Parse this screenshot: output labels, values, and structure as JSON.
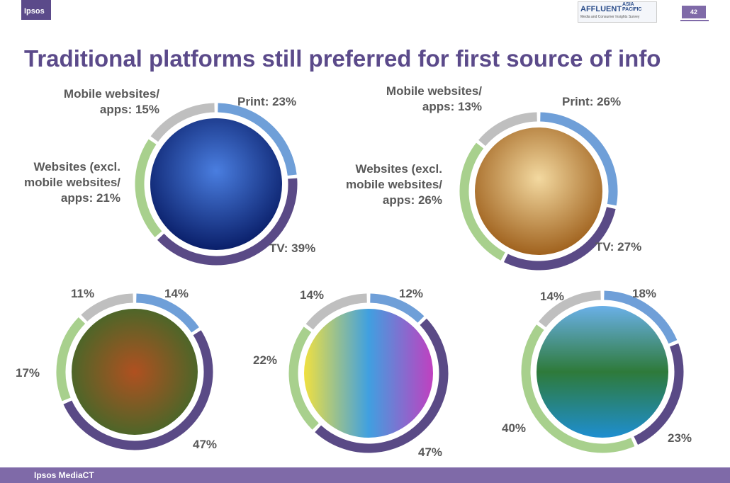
{
  "header": {
    "logo": "Ipsos",
    "brand": "AFFLUENT",
    "region": "ASIA PACIFIC",
    "subtitle": "Media and Consumer Insights Survey",
    "page_number": "42"
  },
  "title": "Traditional platforms still preferred for first source of info",
  "footer": "Ipsos MediaCT",
  "chart_data": [
    {
      "type": "donut",
      "values": [
        23,
        39,
        21,
        15
      ],
      "value_labels": [
        "Print: 23%",
        "TV: 39%",
        "Websites (excl. mobile websites/ apps: 21%",
        "Mobile websites/ apps: 15%"
      ],
      "colors": [
        "#6f9fd8",
        "#5a4a86",
        "#a8d08d",
        "#bfbfbf"
      ]
    },
    {
      "type": "donut",
      "values": [
        26,
        27,
        26,
        13
      ],
      "value_labels": [
        "Print: 26%",
        "TV: 27%",
        "Websites (excl. mobile websites/ apps: 26%",
        "Mobile websites/ apps: 13%"
      ],
      "colors": [
        "#6f9fd8",
        "#5a4a86",
        "#a8d08d",
        "#bfbfbf"
      ]
    },
    {
      "type": "donut",
      "values": [
        14,
        47,
        17,
        11
      ],
      "value_labels": [
        "14%",
        "47%",
        "17%",
        "11%"
      ],
      "colors": [
        "#6f9fd8",
        "#5a4a86",
        "#a8d08d",
        "#bfbfbf"
      ]
    },
    {
      "type": "donut",
      "values": [
        12,
        47,
        22,
        14
      ],
      "value_labels": [
        "12%",
        "47%",
        "22%",
        "14%"
      ],
      "colors": [
        "#6f9fd8",
        "#5a4a86",
        "#a8d08d",
        "#bfbfbf"
      ]
    },
    {
      "type": "donut",
      "values": [
        18,
        23,
        40,
        14
      ],
      "value_labels": [
        "18%",
        "23%",
        "40%",
        "14%"
      ],
      "colors": [
        "#6f9fd8",
        "#5a4a86",
        "#a8d08d",
        "#bfbfbf"
      ]
    }
  ]
}
